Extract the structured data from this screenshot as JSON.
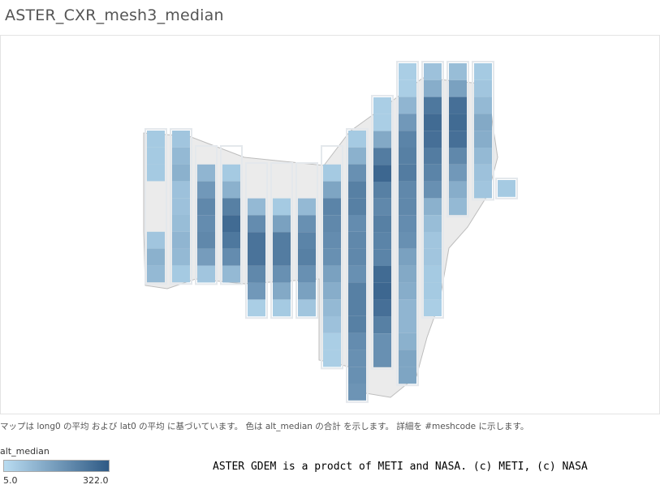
{
  "title": "ASTER_CXR_mesh3_median",
  "caption": "マップは long0 の平均 および lat0 の平均 に基づいています。 色は alt_median の合計 を示します。 詳細を #meshcode に示します。",
  "credit": "ASTER GDEM is a prodct of METI and NASA. (c) METI, (c) NASA",
  "legend": {
    "title": "alt_median",
    "min_label": "5.0",
    "max_label": "322.0",
    "color_low": "#b9dcf1",
    "color_high": "#2f5a85"
  },
  "chart_data": {
    "type": "heatmap",
    "title": "ASTER_CXR_mesh3_median",
    "color_field": "alt_median",
    "color_range": [
      5.0,
      322.0
    ],
    "columns": [
      {
        "cells": [
          [
            0,
            50
          ],
          [
            1,
            50
          ],
          [
            2,
            50
          ],
          [
            6,
            60
          ],
          [
            7,
            110
          ],
          [
            8,
            90
          ]
        ]
      },
      {
        "cells": [
          [
            0,
            60
          ],
          [
            1,
            90
          ],
          [
            2,
            110
          ],
          [
            3,
            70
          ],
          [
            4,
            70
          ],
          [
            5,
            80
          ],
          [
            6,
            100
          ],
          [
            7,
            90
          ],
          [
            8,
            50
          ]
        ]
      },
      {
        "cells": [
          [
            1,
            100
          ],
          [
            2,
            170
          ],
          [
            3,
            210
          ],
          [
            4,
            200
          ],
          [
            5,
            210
          ],
          [
            6,
            160
          ],
          [
            7,
            60
          ]
        ]
      },
      {
        "cells": [
          [
            1,
            50
          ],
          [
            2,
            110
          ],
          [
            3,
            230
          ],
          [
            4,
            280
          ],
          [
            5,
            250
          ],
          [
            6,
            200
          ],
          [
            7,
            90
          ]
        ]
      },
      {
        "cells": [
          [
            2,
            90
          ],
          [
            3,
            200
          ],
          [
            4,
            260
          ],
          [
            5,
            260
          ],
          [
            6,
            210
          ],
          [
            7,
            170
          ],
          [
            8,
            40
          ]
        ]
      },
      {
        "cells": [
          [
            2,
            50
          ],
          [
            3,
            150
          ],
          [
            4,
            240
          ],
          [
            5,
            240
          ],
          [
            6,
            190
          ],
          [
            7,
            130
          ],
          [
            8,
            50
          ]
        ]
      },
      {
        "cells": [
          [
            2,
            90
          ],
          [
            3,
            190
          ],
          [
            4,
            220
          ],
          [
            5,
            230
          ],
          [
            6,
            190
          ],
          [
            7,
            150
          ],
          [
            8,
            60
          ]
        ]
      },
      {
        "cells": [
          [
            1,
            50
          ],
          [
            2,
            140
          ],
          [
            3,
            220
          ],
          [
            4,
            210
          ],
          [
            5,
            200
          ],
          [
            6,
            190
          ],
          [
            7,
            150
          ],
          [
            8,
            120
          ],
          [
            9,
            90
          ],
          [
            10,
            70
          ],
          [
            11,
            40
          ],
          [
            12,
            40
          ]
        ]
      },
      {
        "cells": [
          [
            0,
            50
          ],
          [
            1,
            110
          ],
          [
            2,
            190
          ],
          [
            3,
            230
          ],
          [
            4,
            230
          ],
          [
            5,
            200
          ],
          [
            6,
            210
          ],
          [
            7,
            210
          ],
          [
            8,
            190
          ],
          [
            9,
            230
          ],
          [
            10,
            230
          ],
          [
            11,
            230
          ],
          [
            12,
            200
          ],
          [
            13,
            190
          ],
          [
            14,
            190
          ],
          [
            15,
            180
          ]
        ]
      },
      {
        "cells": [
          [
            0,
            40
          ],
          [
            1,
            40
          ],
          [
            2,
            130
          ],
          [
            3,
            240
          ],
          [
            4,
            290
          ],
          [
            5,
            230
          ],
          [
            6,
            210
          ],
          [
            7,
            230
          ],
          [
            8,
            220
          ],
          [
            9,
            220
          ],
          [
            10,
            280
          ],
          [
            11,
            290
          ],
          [
            12,
            270
          ],
          [
            13,
            230
          ],
          [
            14,
            190
          ],
          [
            15,
            190
          ]
        ]
      },
      {
        "cells": [
          [
            0,
            40
          ],
          [
            1,
            40
          ],
          [
            2,
            100
          ],
          [
            3,
            170
          ],
          [
            4,
            220
          ],
          [
            5,
            230
          ],
          [
            6,
            240
          ],
          [
            7,
            210
          ],
          [
            8,
            210
          ],
          [
            9,
            200
          ],
          [
            10,
            190
          ],
          [
            11,
            150
          ],
          [
            12,
            130
          ],
          [
            13,
            120
          ],
          [
            14,
            100
          ],
          [
            15,
            100
          ],
          [
            16,
            110
          ],
          [
            17,
            140
          ],
          [
            18,
            140
          ]
        ]
      },
      {
        "cells": [
          [
            0,
            70
          ],
          [
            1,
            120
          ],
          [
            2,
            250
          ],
          [
            3,
            280
          ],
          [
            4,
            270
          ],
          [
            5,
            240
          ],
          [
            6,
            220
          ],
          [
            7,
            190
          ],
          [
            8,
            110
          ],
          [
            9,
            80
          ],
          [
            10,
            60
          ],
          [
            11,
            60
          ],
          [
            12,
            50
          ],
          [
            13,
            50
          ],
          [
            14,
            40
          ]
        ]
      },
      {
        "cells": [
          [
            0,
            80
          ],
          [
            1,
            150
          ],
          [
            2,
            270
          ],
          [
            3,
            280
          ],
          [
            4,
            270
          ],
          [
            5,
            210
          ],
          [
            6,
            170
          ],
          [
            7,
            120
          ],
          [
            8,
            90
          ]
        ]
      },
      {
        "cells": [
          [
            0,
            50
          ],
          [
            1,
            60
          ],
          [
            2,
            90
          ],
          [
            3,
            130
          ],
          [
            4,
            120
          ],
          [
            5,
            90
          ],
          [
            6,
            70
          ],
          [
            7,
            60
          ]
        ]
      },
      {
        "cells": [
          [
            0,
            50
          ]
        ]
      }
    ]
  }
}
